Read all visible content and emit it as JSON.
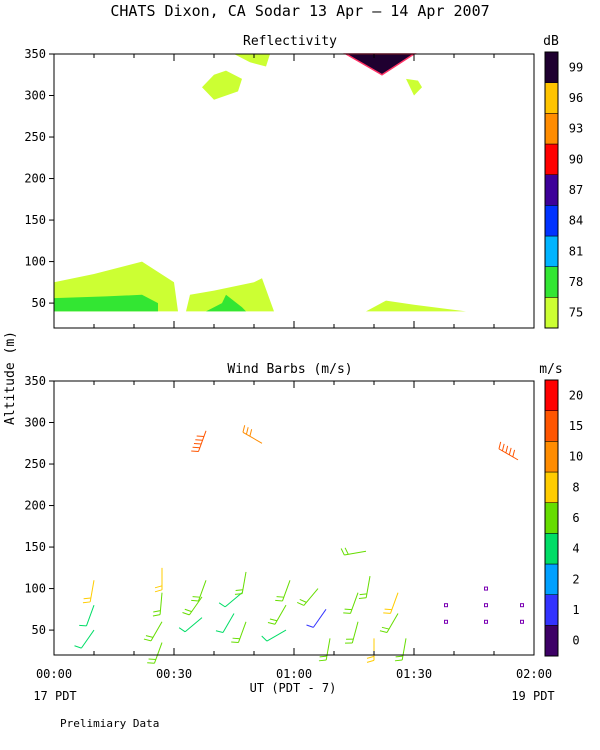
{
  "title": "CHATS Dixon, CA  Sodar  13 Apr — 14 Apr 2007",
  "ylabel": "Altitude (m)",
  "xlabel": "UT  (PDT - 7)",
  "x_start_label": "17 PDT",
  "x_end_label": "19 PDT",
  "footer": "Prelimiary Data",
  "chart_data": [
    {
      "type": "heatmap",
      "title": "Reflectivity",
      "colorbar_label": "dB",
      "colorbar_ticks": [
        "75",
        "78",
        "81",
        "84",
        "87",
        "90",
        "93",
        "96",
        "99"
      ],
      "colorbar_colors": [
        "#ccff33",
        "#33e633",
        "#00b4ff",
        "#0033ff",
        "#3d0099",
        "#ff0000",
        "#ff8c00",
        "#ffc400",
        "#1f0030"
      ],
      "x_ticks": [
        "00:00",
        "00:30",
        "01:00",
        "01:30",
        "02:00"
      ],
      "xlim_minutes": [
        0,
        120
      ],
      "ylim": [
        20,
        350
      ],
      "y_ticks": [
        50,
        100,
        150,
        200,
        250,
        300,
        350
      ],
      "regions": [
        {
          "level": "75",
          "color": "#ccff33",
          "points": [
            [
              0,
              40
            ],
            [
              0,
              75
            ],
            [
              10,
              85
            ],
            [
              22,
              100
            ],
            [
              30,
              75
            ],
            [
              31,
              40
            ]
          ]
        },
        {
          "level": "78",
          "color": "#33e633",
          "points": [
            [
              0,
              40
            ],
            [
              0,
              56
            ],
            [
              13,
              58
            ],
            [
              22,
              60
            ],
            [
              26,
              50
            ],
            [
              26,
              40
            ]
          ]
        },
        {
          "level": "75",
          "color": "#ccff33",
          "points": [
            [
              33,
              40
            ],
            [
              34,
              60
            ],
            [
              40,
              65
            ],
            [
              50,
              75
            ],
            [
              52,
              80
            ],
            [
              55,
              40
            ]
          ]
        },
        {
          "level": "78",
          "color": "#33e633",
          "points": [
            [
              38,
              40
            ],
            [
              42,
              50
            ],
            [
              43,
              60
            ],
            [
              47,
              45
            ],
            [
              48,
              40
            ]
          ]
        },
        {
          "level": "75",
          "color": "#ccff33",
          "points": [
            [
              78,
              40
            ],
            [
              83,
              53
            ],
            [
              90,
              48
            ],
            [
              103,
              40
            ]
          ]
        },
        {
          "level": "75",
          "color": "#ccff33",
          "points": [
            [
              37,
              310
            ],
            [
              40,
              325
            ],
            [
              43,
              330
            ],
            [
              47,
              320
            ],
            [
              46,
              305
            ],
            [
              40,
              295
            ]
          ]
        },
        {
          "level": "75",
          "color": "#ccff33",
          "points": [
            [
              45,
              350
            ],
            [
              49,
              340
            ],
            [
              53,
              335
            ],
            [
              54,
              350
            ]
          ]
        },
        {
          "level": "75",
          "color": "#ccff33",
          "points": [
            [
              88,
              320
            ],
            [
              91,
              318
            ],
            [
              92,
              310
            ],
            [
              90,
              300
            ]
          ]
        },
        {
          "level": "99",
          "color": "#1f0030",
          "points": [
            [
              73,
              350
            ],
            [
              82,
              325
            ],
            [
              90,
              350
            ]
          ]
        }
      ]
    },
    {
      "type": "scatter",
      "title": "Wind Barbs (m/s)",
      "colorbar_label": "m/s",
      "colorbar_ticks": [
        "0",
        "1",
        "2",
        "4",
        "6",
        "8",
        "10",
        "15",
        "20"
      ],
      "colorbar_colors": [
        "#3d0066",
        "#3333ff",
        "#00a0ff",
        "#00dd66",
        "#66dd00",
        "#ffcc00",
        "#ff8c00",
        "#ff5500",
        "#ff0000"
      ],
      "x_ticks": [
        "00:00",
        "00:30",
        "01:00",
        "01:30",
        "02:00"
      ],
      "xlim_minutes": [
        0,
        120
      ],
      "ylim": [
        20,
        350
      ],
      "y_ticks": [
        50,
        100,
        150,
        200,
        250,
        300,
        350
      ],
      "barbs": [
        {
          "t": 10,
          "z": 50,
          "speed": 5,
          "angle": 215
        },
        {
          "t": 10,
          "z": 80,
          "speed": 4,
          "angle": 200
        },
        {
          "t": 10,
          "z": 110,
          "speed": 8,
          "angle": 190
        },
        {
          "t": 27,
          "z": 35,
          "speed": 6,
          "angle": 200
        },
        {
          "t": 27,
          "z": 60,
          "speed": 6,
          "angle": 210
        },
        {
          "t": 27,
          "z": 95,
          "speed": 6,
          "angle": 185
        },
        {
          "t": 27,
          "z": 125,
          "speed": 8,
          "angle": 180
        },
        {
          "t": 37,
          "z": 65,
          "speed": 4,
          "angle": 230
        },
        {
          "t": 37,
          "z": 90,
          "speed": 6,
          "angle": 215
        },
        {
          "t": 38,
          "z": 110,
          "speed": 6,
          "angle": 200
        },
        {
          "t": 38,
          "z": 290,
          "speed": 18,
          "angle": 200
        },
        {
          "t": 45,
          "z": 70,
          "speed": 5,
          "angle": 210
        },
        {
          "t": 47,
          "z": 95,
          "speed": 4,
          "angle": 230
        },
        {
          "t": 48,
          "z": 60,
          "speed": 6,
          "angle": 200
        },
        {
          "t": 48,
          "z": 120,
          "speed": 6,
          "angle": 190
        },
        {
          "t": 52,
          "z": 275,
          "speed": 10,
          "angle": 300
        },
        {
          "t": 58,
          "z": 50,
          "speed": 4,
          "angle": 240
        },
        {
          "t": 58,
          "z": 80,
          "speed": 6,
          "angle": 210
        },
        {
          "t": 59,
          "z": 110,
          "speed": 6,
          "angle": 200
        },
        {
          "t": 66,
          "z": 100,
          "speed": 6,
          "angle": 220
        },
        {
          "t": 68,
          "z": 75,
          "speed": 1,
          "angle": 215
        },
        {
          "t": 69,
          "z": 40,
          "speed": 6,
          "angle": 190
        },
        {
          "t": 76,
          "z": 60,
          "speed": 6,
          "angle": 195
        },
        {
          "t": 76,
          "z": 95,
          "speed": 6,
          "angle": 200
        },
        {
          "t": 78,
          "z": 145,
          "speed": 6,
          "angle": 260
        },
        {
          "t": 79,
          "z": 115,
          "speed": 6,
          "angle": 190
        },
        {
          "t": 80,
          "z": 40,
          "speed": 8,
          "angle": 180
        },
        {
          "t": 86,
          "z": 70,
          "speed": 6,
          "angle": 210
        },
        {
          "t": 86,
          "z": 95,
          "speed": 8,
          "angle": 200
        },
        {
          "t": 88,
          "z": 40,
          "speed": 6,
          "angle": 190
        },
        {
          "t": 98,
          "z": 80,
          "speed": 0,
          "angle": 0
        },
        {
          "t": 98,
          "z": 60,
          "speed": 0,
          "angle": 0
        },
        {
          "t": 108,
          "z": 100,
          "speed": 0,
          "angle": 0
        },
        {
          "t": 108,
          "z": 80,
          "speed": 0,
          "angle": 0
        },
        {
          "t": 108,
          "z": 60,
          "speed": 0,
          "angle": 0
        },
        {
          "t": 117,
          "z": 80,
          "speed": 0,
          "angle": 0
        },
        {
          "t": 117,
          "z": 60,
          "speed": 0,
          "angle": 0
        },
        {
          "t": 116,
          "z": 255,
          "speed": 18,
          "angle": 300
        }
      ]
    }
  ]
}
